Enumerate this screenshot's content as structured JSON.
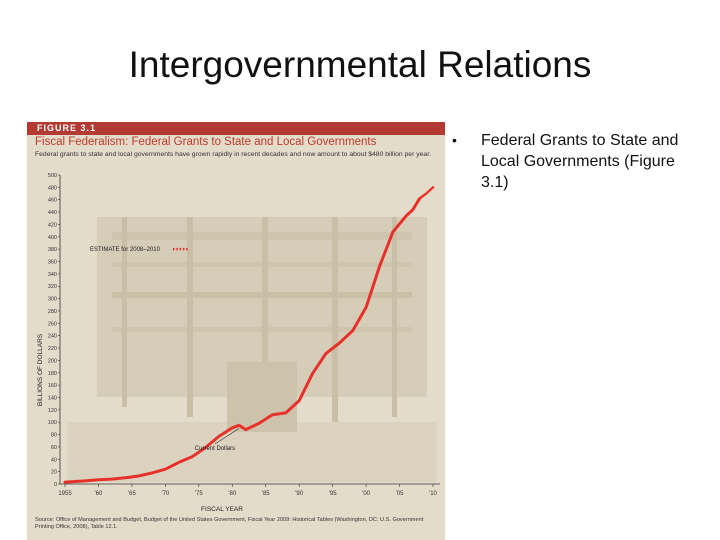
{
  "slide": {
    "title": "Intergovernmental Relations",
    "bullet_symbol": "•",
    "bullet_text": "Federal Grants to State and Local Governments (Figure 3.1)"
  },
  "figure": {
    "label": "FIGURE 3.1",
    "header_color": "#b33a33",
    "title": "Fiscal Federalism: Federal Grants to State and Local Governments",
    "subtitle": "Federal grants to state and local governments have grown rapidly in recent decades and now amount to about $480 billion per year.",
    "source": "Source: Office of Management and Budget, Budget of the United States Government, Fiscal Year 2009: Historical Tables (Washington, DC: U.S. Government Printing Office, 2008), Table 12.1."
  },
  "chart_data": {
    "type": "line",
    "xlabel": "FISCAL YEAR",
    "ylabel": "BILLIONS OF DOLLARS",
    "xlim": [
      1955,
      2010
    ],
    "ylim": [
      0,
      500
    ],
    "x_ticks": [
      1955,
      1960,
      1965,
      1970,
      1975,
      1980,
      1985,
      1990,
      1995,
      2000,
      2005,
      2010
    ],
    "x_tick_labels": [
      "1955",
      "'60",
      "'65",
      "'70",
      "'75",
      "'80",
      "'85",
      "'90",
      "'95",
      "'00",
      "'05",
      "'10"
    ],
    "y_ticks": [
      0,
      20,
      40,
      60,
      80,
      100,
      120,
      140,
      160,
      180,
      200,
      220,
      240,
      260,
      280,
      300,
      320,
      340,
      360,
      380,
      400,
      420,
      440,
      460,
      480,
      500
    ],
    "line_color": "#e8302a",
    "series": [
      {
        "name": "Current Dollars",
        "x": [
          1955,
          1958,
          1960,
          1962,
          1964,
          1966,
          1968,
          1970,
          1972,
          1974,
          1976,
          1978,
          1980,
          1981,
          1982,
          1984,
          1986,
          1988,
          1990,
          1992,
          1994,
          1996,
          1998,
          2000,
          2002,
          2004,
          2006,
          2007,
          2008
        ],
        "y": [
          3,
          5,
          7,
          8,
          10,
          13,
          18,
          24,
          35,
          44,
          59,
          77,
          91,
          95,
          88,
          98,
          112,
          115,
          135,
          179,
          211,
          228,
          248,
          286,
          352,
          408,
          434,
          444,
          462
        ]
      },
      {
        "name": "ESTIMATE for 2008–2010",
        "style": "dotted",
        "x": [
          2008,
          2009,
          2010
        ],
        "y": [
          462,
          470,
          480
        ]
      }
    ],
    "annotations": [
      {
        "text": "Current Dollars",
        "target_x": 1981,
        "target_y": 93
      },
      {
        "text": "ESTIMATE for 2008–2010"
      }
    ],
    "grid": false,
    "legend": "none"
  }
}
